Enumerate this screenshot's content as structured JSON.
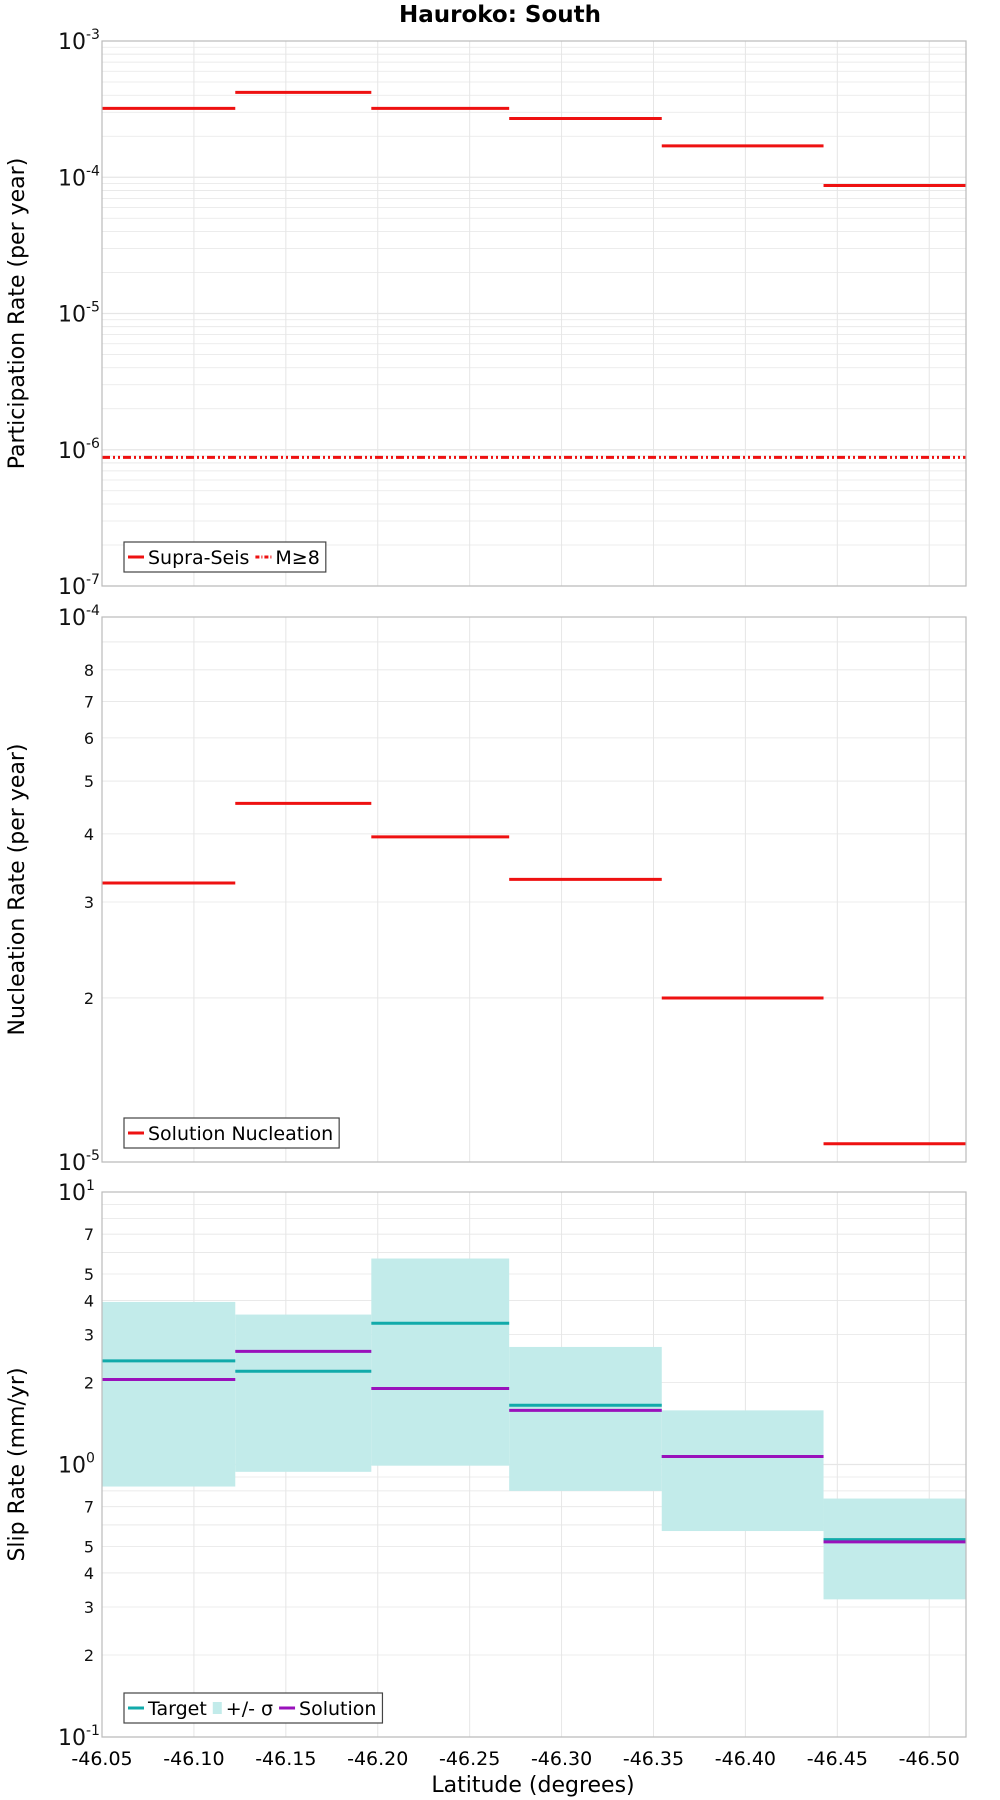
{
  "figure_title": "Hauroko: South",
  "x_axis": {
    "label": "Latitude (degrees)",
    "range": [
      -46.05,
      -46.52
    ],
    "ticks": [
      -46.05,
      -46.1,
      -46.15,
      -46.2,
      -46.25,
      -46.3,
      -46.35,
      -46.4,
      -46.45,
      -46.5
    ],
    "tick_labels": [
      "-46.05",
      "-46.10",
      "-46.15",
      "-46.20",
      "-46.25",
      "-46.30",
      "-46.35",
      "-46.40",
      "-46.45",
      "-46.50"
    ]
  },
  "colors": {
    "red": "#ee1111",
    "teal": "#11aaaa",
    "teal_band": "#c2ebea",
    "purple": "#9911bb",
    "grid": "#e6e6e6",
    "frame": "#bbbbbb"
  },
  "chart_data": [
    {
      "type": "line",
      "style": "step",
      "title": "Hauroko: South",
      "ylabel": "Participation Rate (per year)",
      "yscale": "log",
      "ylim": [
        1e-07,
        0.001
      ],
      "xlim": [
        -46.05,
        -46.52
      ],
      "grid": true,
      "legend_position": "bottom-left",
      "y_major_ticks": [
        {
          "base": "10",
          "exp": "-7",
          "value": 1e-07
        },
        {
          "base": "10",
          "exp": "-6",
          "value": 1e-06
        },
        {
          "base": "10",
          "exp": "-5",
          "value": 1e-05
        },
        {
          "base": "10",
          "exp": "-4",
          "value": 0.0001
        },
        {
          "base": "10",
          "exp": "-3",
          "value": 0.001
        }
      ],
      "y_minor_labels": [],
      "series": [
        {
          "name": "Supra-Seis",
          "color": "#ee1111",
          "dash": "solid",
          "segments": [
            {
              "x0": -46.05,
              "x1": -46.1225,
              "y": 0.00032
            },
            {
              "x0": -46.1225,
              "x1": -46.1965,
              "y": 0.00042
            },
            {
              "x0": -46.1965,
              "x1": -46.2715,
              "y": 0.00032
            },
            {
              "x0": -46.2715,
              "x1": -46.3545,
              "y": 0.00027
            },
            {
              "x0": -46.3545,
              "x1": -46.4425,
              "y": 0.00017
            },
            {
              "x0": -46.4425,
              "x1": -46.52,
              "y": 8.7e-05
            }
          ]
        },
        {
          "name": "M≥8",
          "color": "#ee1111",
          "dash": "dash-dot-dot",
          "segments": [
            {
              "x0": -46.05,
              "x1": -46.52,
              "y": 8.8e-07
            }
          ]
        }
      ]
    },
    {
      "type": "line",
      "style": "step",
      "ylabel": "Nucleation Rate (per year)",
      "yscale": "log",
      "ylim": [
        1e-05,
        0.0001
      ],
      "xlim": [
        -46.05,
        -46.52
      ],
      "grid": true,
      "legend_position": "bottom-left",
      "y_major_ticks": [
        {
          "base": "10",
          "exp": "-5",
          "value": 1e-05
        },
        {
          "base": "10",
          "exp": "-4",
          "value": 0.0001
        }
      ],
      "y_minor_labels": [
        {
          "label": "2",
          "value": 2e-05
        },
        {
          "label": "3",
          "value": 3e-05
        },
        {
          "label": "4",
          "value": 4e-05
        },
        {
          "label": "5",
          "value": 5e-05
        },
        {
          "label": "6",
          "value": 6e-05
        },
        {
          "label": "7",
          "value": 7e-05
        },
        {
          "label": "8",
          "value": 8e-05
        }
      ],
      "series": [
        {
          "name": "Solution Nucleation",
          "color": "#ee1111",
          "dash": "solid",
          "segments": [
            {
              "x0": -46.05,
              "x1": -46.1225,
              "y": 3.25e-05
            },
            {
              "x0": -46.1225,
              "x1": -46.1965,
              "y": 4.55e-05
            },
            {
              "x0": -46.1965,
              "x1": -46.2715,
              "y": 3.95e-05
            },
            {
              "x0": -46.2715,
              "x1": -46.3545,
              "y": 3.3e-05
            },
            {
              "x0": -46.3545,
              "x1": -46.4425,
              "y": 2e-05
            },
            {
              "x0": -46.4425,
              "x1": -46.52,
              "y": 1.08e-05
            }
          ]
        }
      ]
    },
    {
      "type": "line",
      "style": "step",
      "ylabel": "Slip Rate (mm/yr)",
      "yscale": "log",
      "ylim": [
        0.1,
        10
      ],
      "xlim": [
        -46.05,
        -46.52
      ],
      "grid": true,
      "legend_position": "bottom-left",
      "y_major_ticks": [
        {
          "base": "10",
          "exp": "-1",
          "value": 0.1
        },
        {
          "base": "10",
          "exp": "0",
          "value": 1
        },
        {
          "base": "10",
          "exp": "1",
          "value": 10
        }
      ],
      "y_minor_labels": [
        {
          "label": "2",
          "value": 0.2
        },
        {
          "label": "3",
          "value": 0.3
        },
        {
          "label": "4",
          "value": 0.4
        },
        {
          "label": "5",
          "value": 0.5
        },
        {
          "label": "7",
          "value": 0.7
        },
        {
          "label": "2",
          "value": 2
        },
        {
          "label": "3",
          "value": 3
        },
        {
          "label": "4",
          "value": 4
        },
        {
          "label": "5",
          "value": 5
        },
        {
          "label": "7",
          "value": 7
        }
      ],
      "bands": [
        {
          "name": "+/- σ",
          "color": "#c2ebea",
          "segments": [
            {
              "x0": -46.05,
              "x1": -46.1225,
              "lo": 0.83,
              "hi": 3.95
            },
            {
              "x0": -46.1225,
              "x1": -46.1965,
              "lo": 0.94,
              "hi": 3.55
            },
            {
              "x0": -46.1965,
              "x1": -46.2715,
              "lo": 0.99,
              "hi": 5.7
            },
            {
              "x0": -46.2715,
              "x1": -46.3545,
              "lo": 0.8,
              "hi": 2.7
            },
            {
              "x0": -46.3545,
              "x1": -46.4425,
              "lo": 0.57,
              "hi": 1.58
            },
            {
              "x0": -46.4425,
              "x1": -46.52,
              "lo": 0.32,
              "hi": 0.75
            }
          ]
        }
      ],
      "series": [
        {
          "name": "Target",
          "color": "#11aaaa",
          "dash": "solid",
          "segments": [
            {
              "x0": -46.05,
              "x1": -46.1225,
              "y": 2.4
            },
            {
              "x0": -46.1225,
              "x1": -46.1965,
              "y": 2.2
            },
            {
              "x0": -46.1965,
              "x1": -46.2715,
              "y": 3.3
            },
            {
              "x0": -46.2715,
              "x1": -46.3545,
              "y": 1.65
            },
            {
              "x0": -46.3545,
              "x1": -46.4425,
              "y": 1.07
            },
            {
              "x0": -46.4425,
              "x1": -46.52,
              "y": 0.53
            }
          ]
        },
        {
          "name": "Solution",
          "color": "#9911bb",
          "dash": "solid",
          "segments": [
            {
              "x0": -46.05,
              "x1": -46.1225,
              "y": 2.05
            },
            {
              "x0": -46.1225,
              "x1": -46.1965,
              "y": 2.6
            },
            {
              "x0": -46.1965,
              "x1": -46.2715,
              "y": 1.9
            },
            {
              "x0": -46.2715,
              "x1": -46.3545,
              "y": 1.58
            },
            {
              "x0": -46.3545,
              "x1": -46.4425,
              "y": 1.07
            },
            {
              "x0": -46.4425,
              "x1": -46.52,
              "y": 0.52
            }
          ]
        }
      ],
      "legend_order": [
        "Target",
        "+/- σ",
        "Solution"
      ]
    }
  ]
}
